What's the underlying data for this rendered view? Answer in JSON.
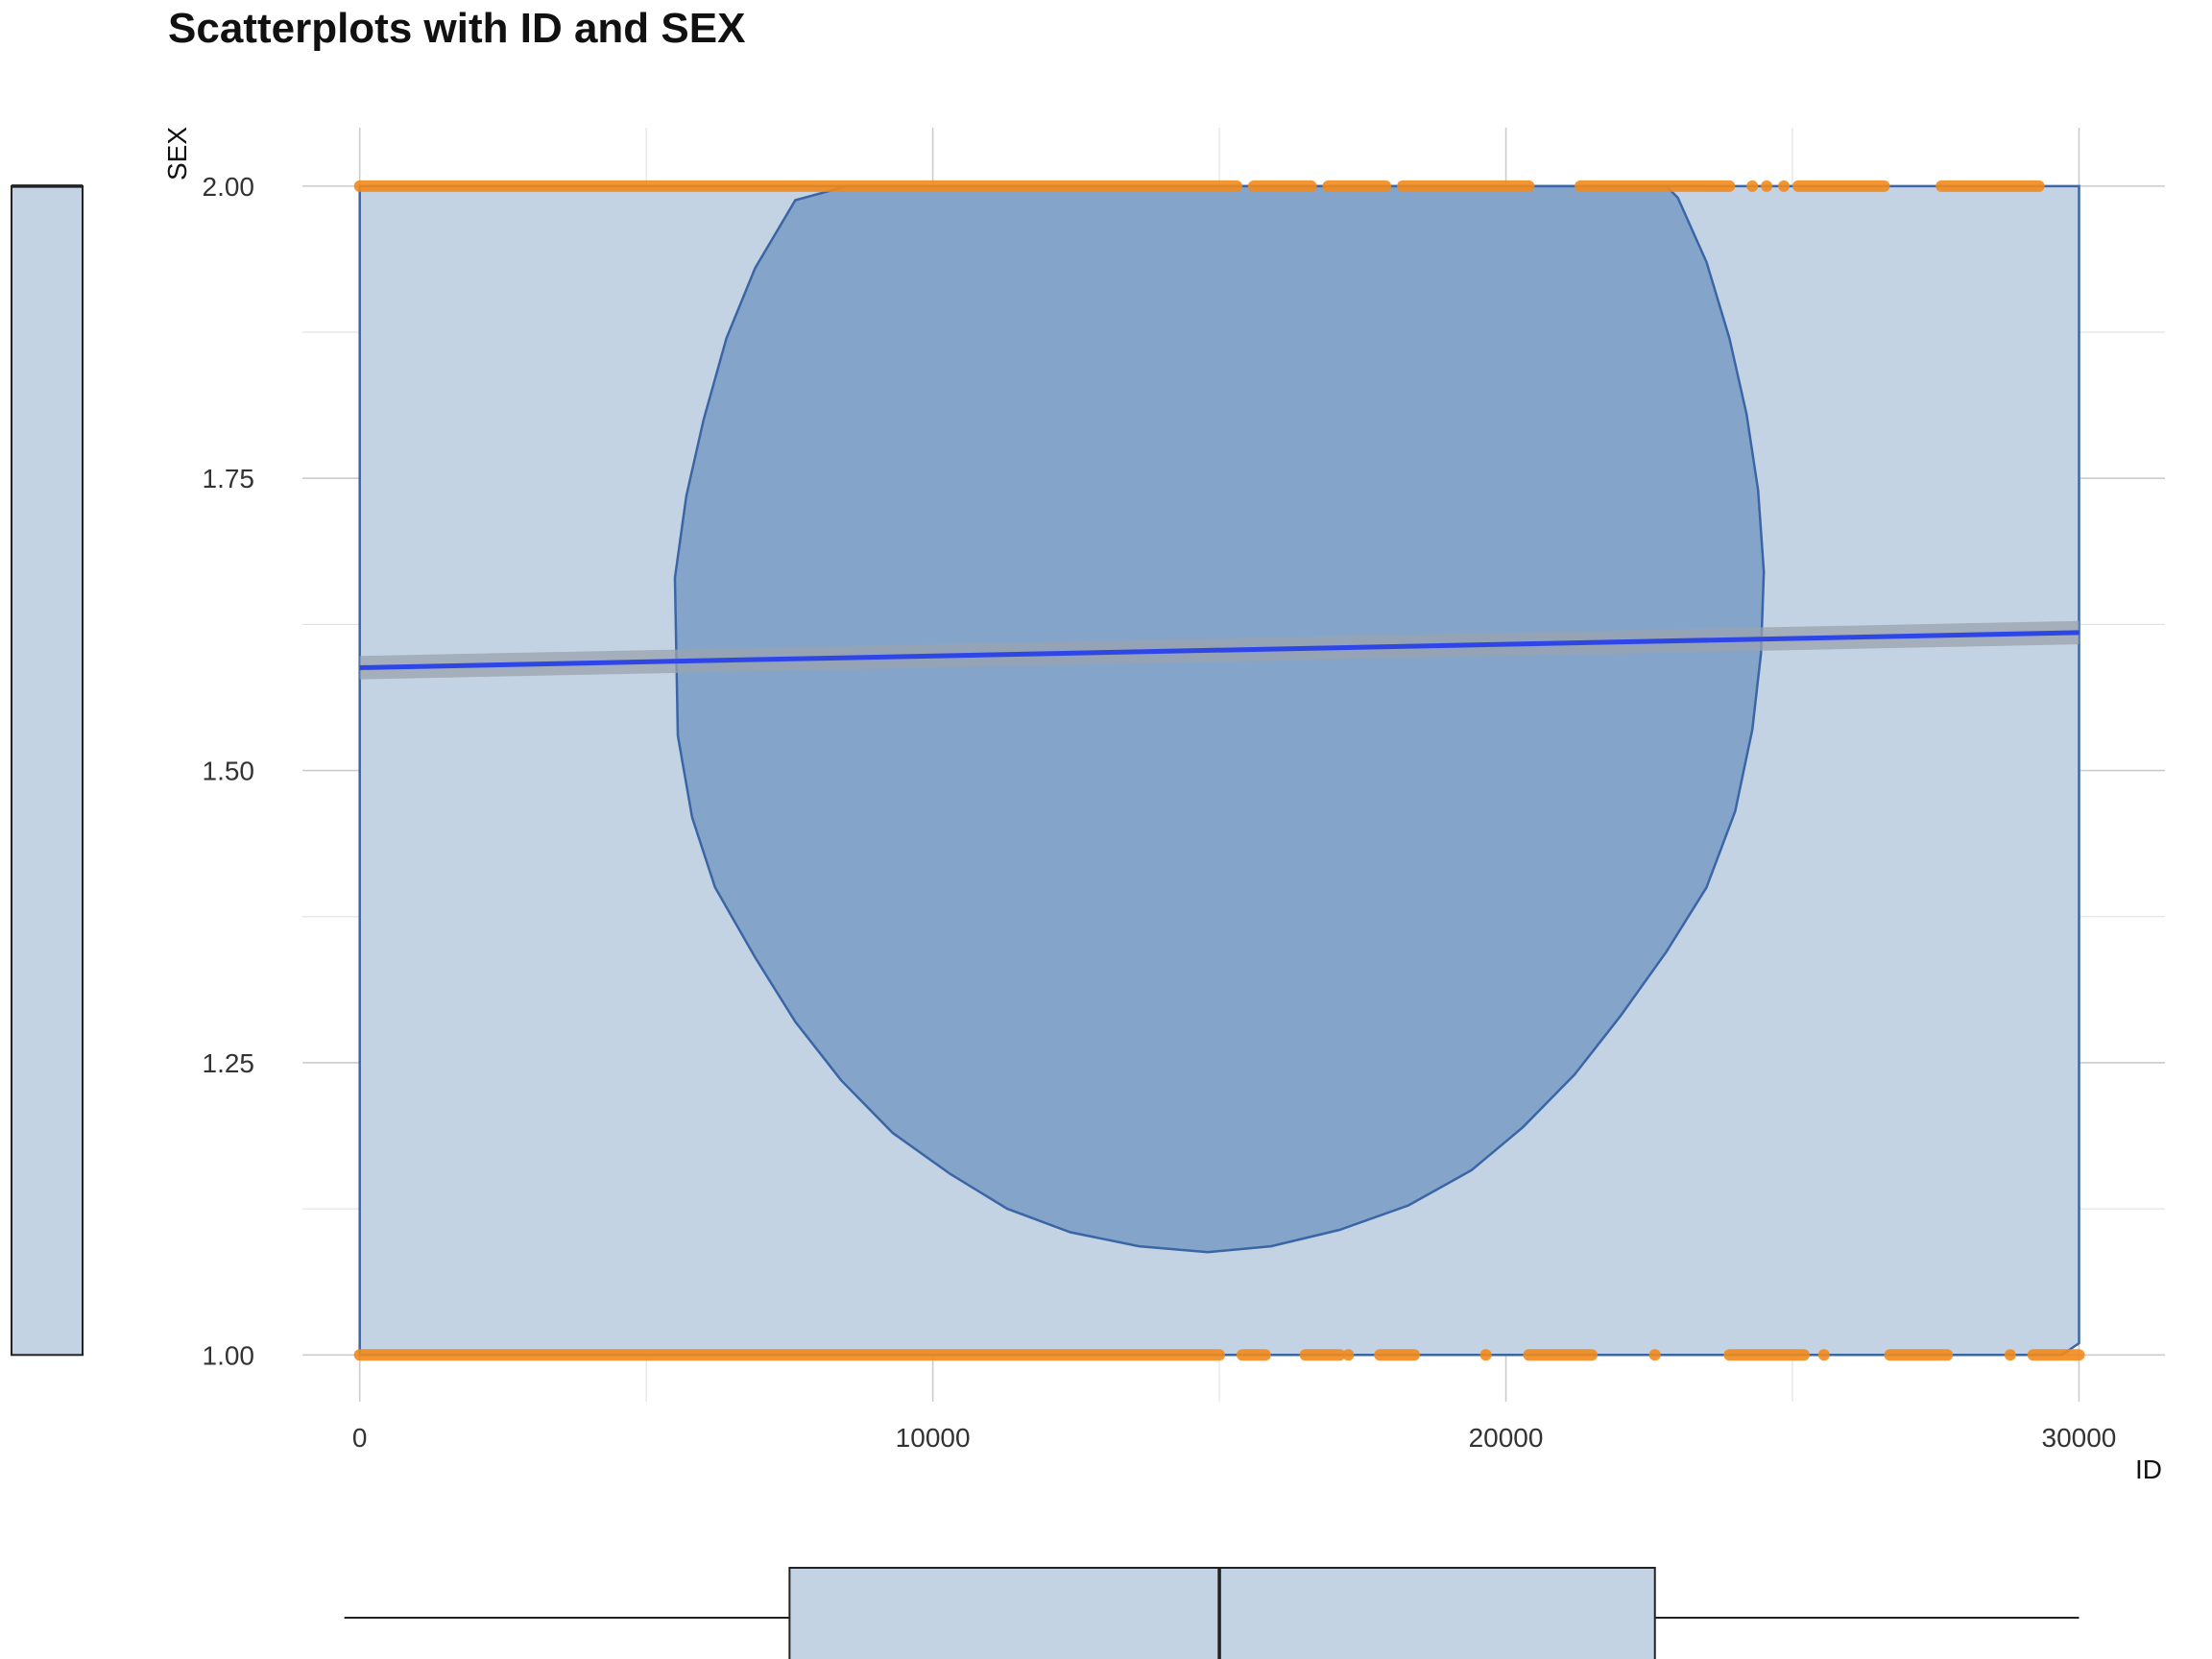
{
  "chart_data": {
    "type": "scatter",
    "title": "Scatterplots with ID and SEX",
    "xlabel": "ID",
    "ylabel": "SEX",
    "xlim": [
      -1000,
      31500
    ],
    "ylim": [
      0.96,
      2.05
    ],
    "x_ticks": [
      0,
      10000,
      20000,
      30000
    ],
    "x_tick_labels": [
      "0",
      "10000",
      "20000",
      "30000"
    ],
    "y_ticks": [
      1.0,
      1.25,
      1.5,
      1.75,
      2.0
    ],
    "y_tick_labels": [
      "1.00",
      "1.25",
      "1.50",
      "1.75",
      "2.00"
    ],
    "grid": true,
    "colors": {
      "points": "#f28a1c",
      "density_outer": "#c4d3e4",
      "density_inner": "#7d9fc5",
      "density_stroke": "#3a66a6",
      "fit_line": "#2e46e8",
      "ci_band": "#9aa3ad",
      "grid": "#cccccc",
      "box_fill": "#c4d3e4",
      "box_stroke": "#222222"
    },
    "point_segments": {
      "sex_2": [
        [
          0,
          15300
        ],
        [
          15600,
          16600
        ],
        [
          16900,
          17900
        ],
        [
          18200,
          20400
        ],
        [
          21300,
          23900
        ],
        [
          25100,
          26600
        ],
        [
          27600,
          29300
        ]
      ],
      "sex_2_single": [
        24300,
        24550,
        24850
      ],
      "sex_1": [
        [
          0,
          15000
        ],
        [
          15400,
          15800
        ],
        [
          16500,
          17100
        ],
        [
          17800,
          18400
        ],
        [
          20400,
          21500
        ],
        [
          23900,
          25200
        ],
        [
          26700,
          27700
        ],
        [
          29200,
          30000
        ]
      ],
      "sex_1_single": [
        17250,
        19650,
        22600,
        25550,
        28800
      ]
    },
    "fit_line": {
      "x": [
        0,
        30000
      ],
      "y": [
        1.588,
        1.618
      ]
    },
    "ci_band": {
      "x": [
        0,
        30000
      ],
      "lower": [
        1.578,
        1.608
      ],
      "upper": [
        1.598,
        1.628
      ]
    },
    "density_outer": {
      "x": [
        0,
        0,
        30000,
        30000,
        29700,
        0
      ],
      "y": [
        1.0,
        2.0,
        2.0,
        1.01,
        1.0,
        1.0
      ]
    },
    "density_inner": {
      "x": [
        8500,
        7600,
        6900,
        6400,
        6000,
        5700,
        5500,
        5550,
        5800,
        6200,
        6900,
        7600,
        8400,
        9300,
        10300,
        11300,
        12400,
        13600,
        14800,
        15900,
        17100,
        18300,
        19400,
        20300,
        21200,
        22000,
        22800,
        23500,
        24000,
        24300,
        24450,
        24500,
        24400,
        24200,
        23900,
        23500,
        23000,
        22800,
        22300,
        8500
      ],
      "y": [
        2.0,
        1.988,
        1.93,
        1.87,
        1.8,
        1.735,
        1.665,
        1.53,
        1.46,
        1.4,
        1.34,
        1.285,
        1.235,
        1.19,
        1.155,
        1.125,
        1.105,
        1.093,
        1.088,
        1.093,
        1.107,
        1.128,
        1.158,
        1.195,
        1.24,
        1.29,
        1.345,
        1.4,
        1.465,
        1.535,
        1.6,
        1.67,
        1.74,
        1.805,
        1.87,
        1.935,
        1.99,
        2.0,
        2.0,
        2.0
      ]
    },
    "boxplot_x": {
      "min": 0,
      "q1": 7500,
      "median": 15000,
      "q3": 22600,
      "max": 30000
    },
    "boxplot_y": {
      "min": 1.0,
      "q1": 1.0,
      "median": 2.0,
      "q3": 2.0,
      "max": 2.0
    }
  }
}
